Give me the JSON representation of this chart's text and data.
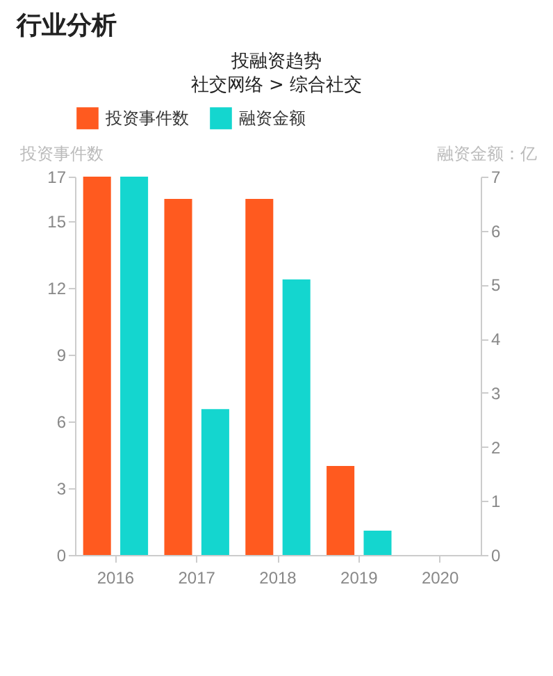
{
  "chart_data": {
    "type": "bar",
    "title": "投融资趋势",
    "subtitle": "社交网络 > 综合社交",
    "annotations": [
      "行业分析"
    ],
    "ylabel": "投资事件数",
    "y2label": "融资金额：亿",
    "categories": [
      "2016",
      "2017",
      "2018",
      "2019",
      "2020"
    ],
    "series": [
      {
        "name": "投资事件数",
        "color": "#ff5a1f",
        "values": [
          17,
          16,
          16,
          4,
          0
        ]
      },
      {
        "name": "融资金额",
        "color": "#14d6cf",
        "axis": "y2",
        "values": [
          7,
          2.7,
          5.1,
          0.45,
          0
        ]
      }
    ],
    "ylim": [
      0,
      17
    ],
    "yticks": [
      0,
      3,
      6,
      9,
      12,
      15,
      17
    ],
    "y2lim": [
      0,
      7
    ],
    "y2ticks": [
      0,
      1,
      2,
      3,
      4,
      5,
      6,
      7
    ],
    "grid": false,
    "legend": "top"
  }
}
